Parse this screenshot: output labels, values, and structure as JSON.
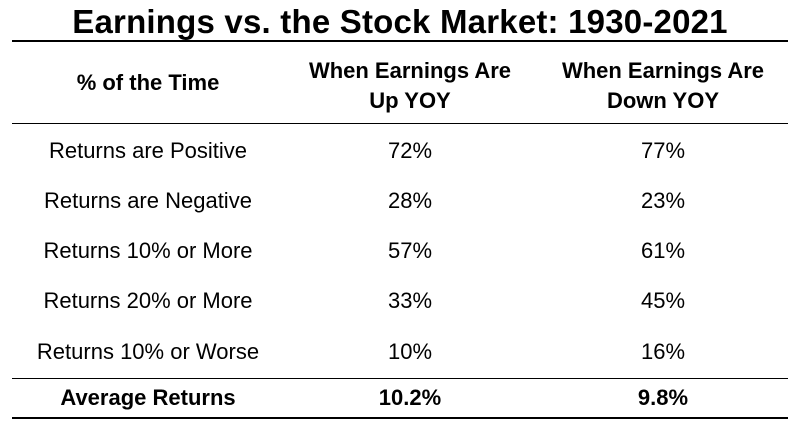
{
  "title": "Earnings vs. the Stock Market: 1930-2021",
  "chart_data": {
    "type": "table",
    "title": "Earnings vs. the Stock Market: 1930-2021",
    "columns": [
      "% of the Time",
      "When Earnings Are Up YOY",
      "When Earnings Are Down YOY"
    ],
    "header_lines": [
      [
        "% of the Time"
      ],
      [
        "When Earnings Are",
        "Up YOY"
      ],
      [
        "When Earnings Are",
        "Down YOY"
      ]
    ],
    "rows": [
      [
        "Returns are Positive",
        "72%",
        "77%"
      ],
      [
        "Returns are Negative",
        "28%",
        "23%"
      ],
      [
        "Returns 10% or More",
        "57%",
        "61%"
      ],
      [
        "Returns 20% or More",
        "33%",
        "45%"
      ],
      [
        "Returns 10% or Worse",
        "10%",
        "16%"
      ]
    ],
    "summary_row": [
      "Average Returns",
      "10.2%",
      "9.8%"
    ]
  }
}
